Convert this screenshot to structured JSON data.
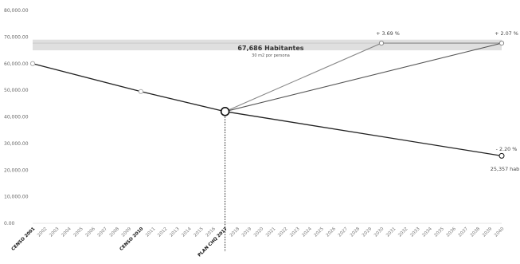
{
  "chart_data": {
    "type": "line",
    "title": "",
    "xlabel": "",
    "ylabel": "",
    "ylim": [
      0,
      80000
    ],
    "y_ticks": [
      "0.00",
      "10,000.00",
      "20,000.00",
      "30,000.00",
      "40,000.00",
      "50,000.00",
      "60,000.00",
      "70,000.00",
      "80,000.00"
    ],
    "x_ticks": [
      "CENSO 2001",
      "2002",
      "2003",
      "2004",
      "2005",
      "2006",
      "2007",
      "2008",
      "2009",
      "CENSO 2010",
      "2011",
      "2012",
      "2013",
      "2014",
      "2015",
      "2016",
      "PLAN CHQ 2017",
      "2018",
      "2019",
      "2020",
      "2021",
      "2022",
      "2023",
      "2024",
      "2025",
      "2026",
      "2027",
      "2028",
      "2029",
      "2030",
      "2031",
      "2032",
      "2033",
      "2034",
      "2035",
      "2036",
      "2037",
      "2038",
      "2039",
      "2040"
    ],
    "bold_ticks": [
      "CENSO 2001",
      "CENSO 2010",
      "PLAN CHQ 2017"
    ],
    "band": {
      "y_from": 65000,
      "y_to": 69000,
      "value": 67686,
      "label": "67,686 Habitantes",
      "sublabel": "30 m2 por persona",
      "color": "#d4d4d4"
    },
    "series": [
      {
        "points": [
          {
            "x": "CENSO 2001",
            "y": 60000
          },
          {
            "x": "CENSO 2010",
            "y": 49500
          },
          {
            "x": "PLAN CHQ 2017",
            "y": 42000
          },
          {
            "x": "2040",
            "y": 25357
          }
        ],
        "color": "#222222",
        "annotation": "- 2.20 %",
        "end_label": "25,357 hab"
      },
      {
        "points": [
          {
            "x": "PLAN CHQ 2017",
            "y": 42000
          },
          {
            "x": "2040",
            "y": 67686
          }
        ],
        "color": "#555555",
        "annotation": "+ 2.07 %"
      },
      {
        "points": [
          {
            "x": "PLAN CHQ 2017",
            "y": 42000
          },
          {
            "x": "2030",
            "y": 67686
          },
          {
            "x": "2040",
            "y": 67686
          }
        ],
        "color": "#888888",
        "annotation": "+ 3.69 %"
      }
    ],
    "vertical_marker": {
      "x": "PLAN CHQ 2017",
      "style": "dotted"
    },
    "grid": false,
    "legend": "none"
  }
}
